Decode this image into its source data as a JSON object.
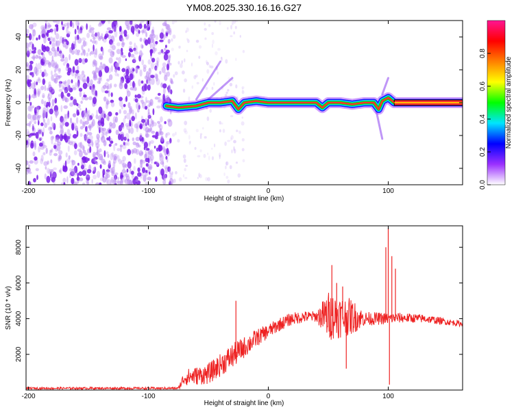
{
  "title": "YM08.2025.330.16.16.G27",
  "chart_data": [
    {
      "type": "heatmap",
      "name": "spectrogram",
      "xlabel": "Height of straight line (km)",
      "ylabel": "Frequency (Hz)",
      "xlim": [
        -202,
        162
      ],
      "ylim": [
        -50,
        50
      ],
      "xticks": [
        -200,
        -100,
        0,
        100
      ],
      "yticks": [
        -40,
        -20,
        0,
        20,
        40
      ],
      "colorbar": {
        "label": "Normalized spectral amplitude",
        "range": [
          0,
          1
        ],
        "ticks": [
          "0.0",
          "0.2",
          "0.4",
          "0.6",
          "0.8"
        ],
        "tick_values": [
          0.0,
          0.2,
          0.4,
          0.6,
          0.8
        ],
        "colormap": [
          "#ffffff",
          "#9b30ff",
          "#0000ff",
          "#00e5ff",
          "#00ff00",
          "#ffff00",
          "#ff8000",
          "#ff0000",
          "#ff1493"
        ]
      },
      "noise_region": {
        "x_range": [
          -202,
          -80
        ],
        "color": "#8a2be2"
      },
      "signal_track": [
        [
          -85,
          -2
        ],
        [
          -75,
          -3
        ],
        [
          -60,
          -2
        ],
        [
          -50,
          0
        ],
        [
          -40,
          0
        ],
        [
          -30,
          1
        ],
        [
          -25,
          -4
        ],
        [
          -20,
          0
        ],
        [
          -10,
          1
        ],
        [
          0,
          0
        ],
        [
          20,
          0
        ],
        [
          40,
          0
        ],
        [
          45,
          -3
        ],
        [
          50,
          0
        ],
        [
          60,
          0
        ],
        [
          70,
          -1
        ],
        [
          80,
          0
        ],
        [
          88,
          0
        ],
        [
          92,
          -4
        ],
        [
          95,
          1
        ],
        [
          100,
          3
        ],
        [
          105,
          0
        ],
        [
          130,
          0
        ],
        [
          162,
          0
        ]
      ],
      "streak_features": [
        {
          "x_start": -60,
          "x_end": -40,
          "y_start": 2,
          "y_end": 25
        },
        {
          "x_start": -50,
          "x_end": -30,
          "y_start": 2,
          "y_end": 15
        },
        {
          "x_start": 95,
          "x_end": 100,
          "y_start": 5,
          "y_end": 15
        },
        {
          "x_start": 90,
          "x_end": 95,
          "y_start": -5,
          "y_end": -22
        }
      ]
    },
    {
      "type": "line",
      "name": "snr",
      "xlabel": "Height of straight line (km)",
      "ylabel": "SNR (10 * v/v)",
      "xlim": [
        -202,
        162
      ],
      "ylim": [
        0,
        9200
      ],
      "xticks": [
        -200,
        -100,
        0,
        100
      ],
      "yticks": [
        2000,
        4000,
        6000,
        8000
      ],
      "color": "#ee2222",
      "envelope": [
        [
          -202,
          100
        ],
        [
          -75,
          100
        ],
        [
          -70,
          700
        ],
        [
          -50,
          900
        ],
        [
          -40,
          1400
        ],
        [
          -30,
          1900
        ],
        [
          -20,
          2400
        ],
        [
          -10,
          2900
        ],
        [
          0,
          3300
        ],
        [
          10,
          3700
        ],
        [
          20,
          4000
        ],
        [
          30,
          4100
        ],
        [
          50,
          4150
        ],
        [
          70,
          4100
        ],
        [
          80,
          4000
        ],
        [
          100,
          4000
        ],
        [
          110,
          4050
        ],
        [
          130,
          4000
        ],
        [
          162,
          3700
        ]
      ],
      "noise_amplitude": [
        [
          -202,
          60
        ],
        [
          -75,
          60
        ],
        [
          -70,
          450
        ],
        [
          -30,
          700
        ],
        [
          0,
          400
        ],
        [
          40,
          300
        ],
        [
          50,
          1400
        ],
        [
          70,
          1000
        ],
        [
          80,
          400
        ],
        [
          105,
          300
        ],
        [
          162,
          150
        ]
      ],
      "spikes": [
        {
          "x": -27,
          "y": 5000
        },
        {
          "x": 53,
          "y": 7000
        },
        {
          "x": 57,
          "y": 6000
        },
        {
          "x": 62,
          "y": 5800
        },
        {
          "x": 65,
          "y": 1200
        },
        {
          "x": 98,
          "y": 8000
        },
        {
          "x": 100,
          "y": 9100
        },
        {
          "x": 101,
          "y": 300
        },
        {
          "x": 103,
          "y": 7500
        },
        {
          "x": 106,
          "y": 6800
        }
      ]
    }
  ]
}
